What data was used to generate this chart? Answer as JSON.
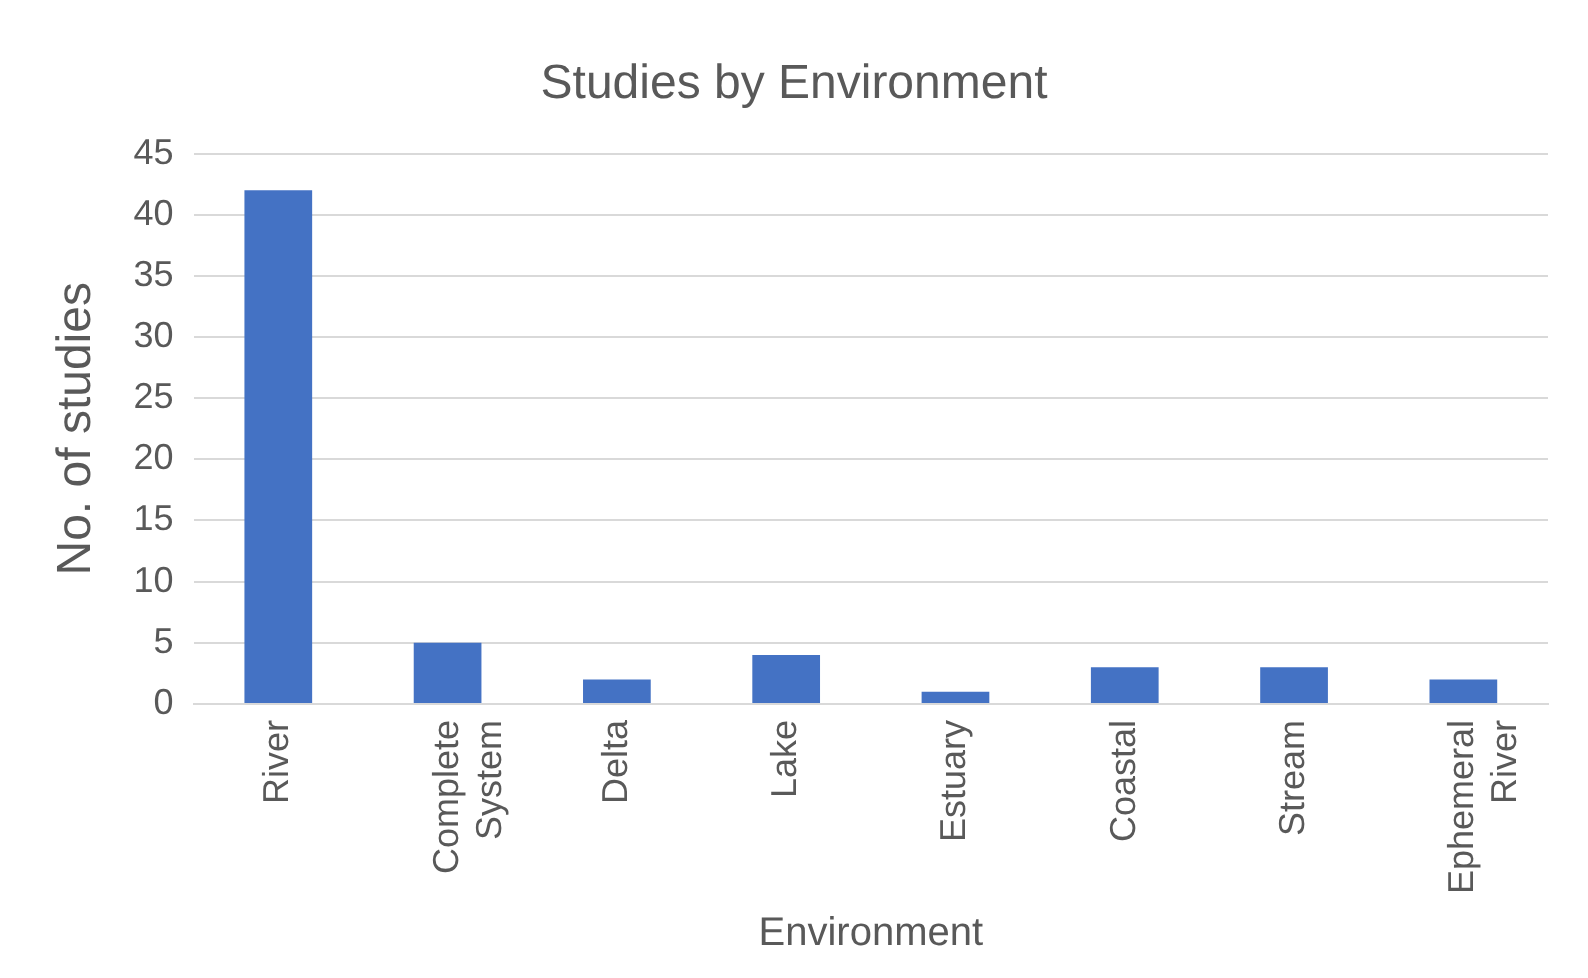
{
  "chart_data": {
    "type": "bar",
    "title": "Studies by Environment",
    "xlabel": "Environment",
    "ylabel": "No. of studies",
    "categories": [
      "River",
      "Complete System",
      "Delta",
      "Lake",
      "Estuary",
      "Coastal",
      "Stream",
      "Ephemeral River"
    ],
    "values": [
      42,
      5,
      2,
      4,
      1,
      3,
      3,
      2
    ],
    "color": "#4472c4",
    "ylim": [
      0,
      45
    ],
    "yticks": [
      0,
      5,
      10,
      15,
      20,
      25,
      30,
      35,
      40,
      45
    ],
    "grid": "y",
    "legend": false
  }
}
